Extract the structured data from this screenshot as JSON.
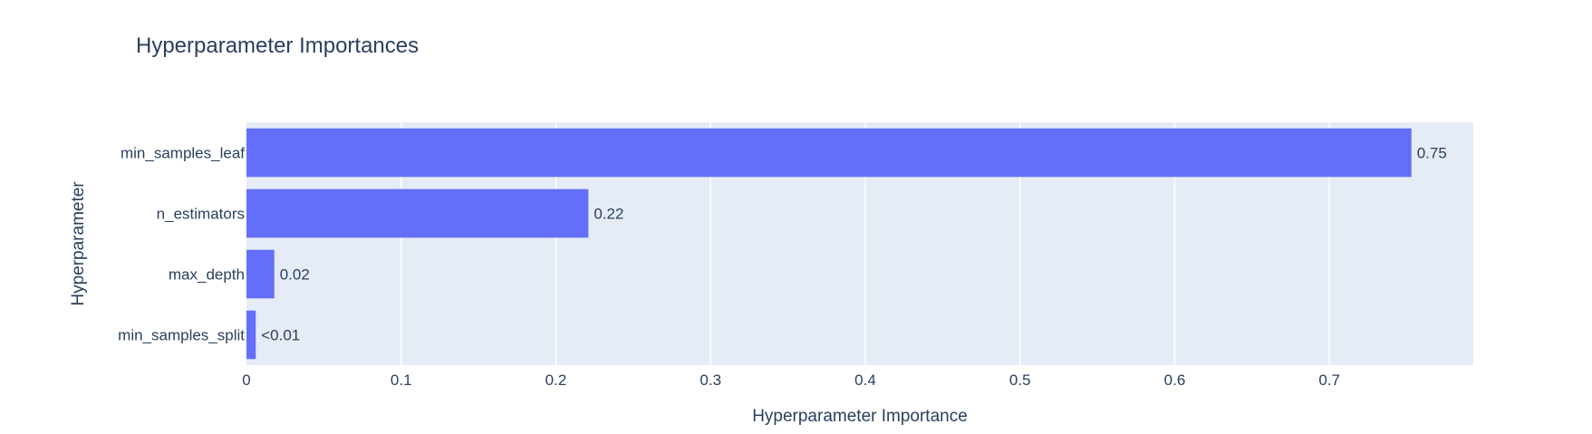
{
  "chart_data": {
    "type": "bar",
    "orientation": "horizontal",
    "title": "Hyperparameter Importances",
    "xlabel": "Hyperparameter Importance",
    "ylabel": "Hyperparameter",
    "categories": [
      "min_samples_leaf",
      "n_estimators",
      "max_depth",
      "min_samples_split"
    ],
    "values": [
      0.753,
      0.221,
      0.018,
      0.006
    ],
    "data_labels": [
      "0.75",
      "0.22",
      "0.02",
      "<0.01"
    ],
    "xlim": [
      0,
      0.793
    ],
    "xticks": [
      0,
      0.1,
      0.2,
      0.3,
      0.4,
      0.5,
      0.6,
      0.7
    ],
    "xtick_labels": [
      "0",
      "0.1",
      "0.2",
      "0.3",
      "0.4",
      "0.5",
      "0.6",
      "0.7"
    ],
    "grid": true,
    "legend": "none",
    "colors": {
      "bar": "#636efa",
      "plot_background": "#e5ecf6",
      "grid": "#ffffff",
      "text": "#2a3f5f"
    }
  }
}
